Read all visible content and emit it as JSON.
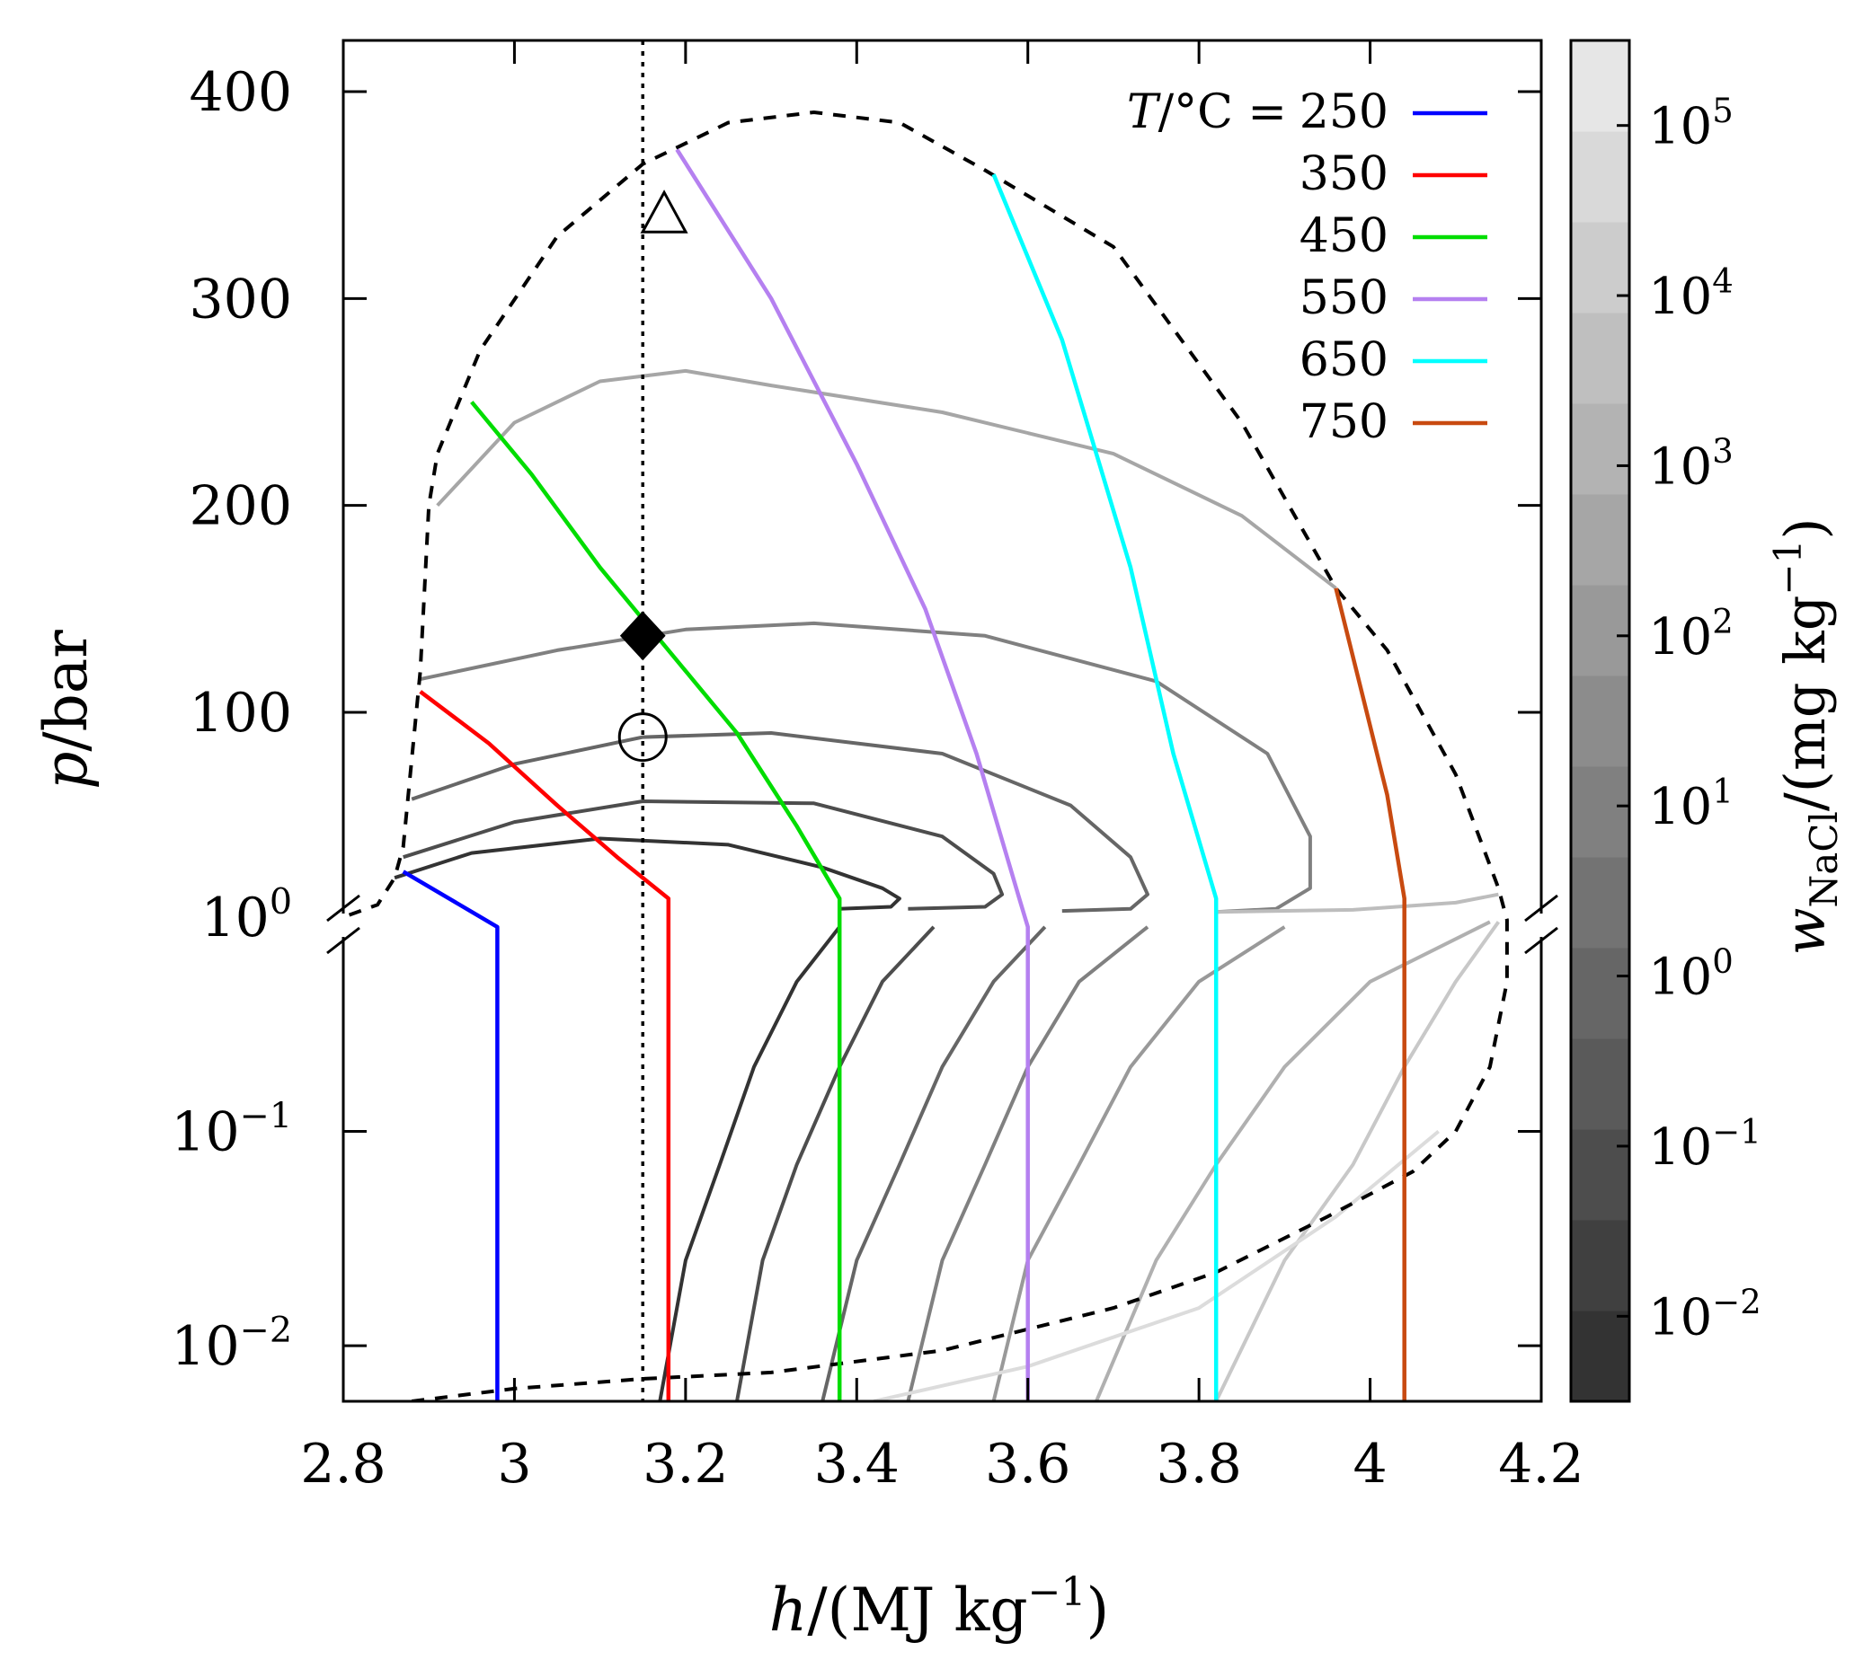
{
  "chart_data": {
    "type": "line",
    "xlabel": {
      "symbol": "h",
      "unit": "MJ kg",
      "exp": "−1"
    },
    "ylabel": {
      "symbol": "p",
      "unit": "bar"
    },
    "xlim": [
      2.8,
      4.2
    ],
    "x_ticks": [
      "2.8",
      "3",
      "3.2",
      "3.4",
      "3.6",
      "3.8",
      "4",
      "4.2"
    ],
    "upper_y": {
      "scale": "linear",
      "range": [
        0,
        400
      ],
      "ticks": [
        {
          "value": 100,
          "label": "100"
        },
        {
          "value": 200,
          "label": "200"
        },
        {
          "value": 300,
          "label": "300"
        },
        {
          "value": 400,
          "label": "400"
        }
      ]
    },
    "lower_y": {
      "scale": "log",
      "range": [
        0.0055,
        1.0
      ],
      "ticks": [
        {
          "value": 1,
          "base": "10",
          "exp": "0"
        },
        {
          "value": 0.1,
          "base": "10",
          "exp": "−1"
        },
        {
          "value": 0.01,
          "base": "10",
          "exp": "−2"
        }
      ]
    },
    "legend": {
      "placement": "top-right",
      "prefix_symbol": "T",
      "prefix_unit": "/°C =",
      "entries": [
        "250",
        "350",
        "450",
        "550",
        "650",
        "750"
      ]
    },
    "isotherms": [
      {
        "name": "250",
        "color": "#0000ff",
        "points": [
          [
            2.87,
            23
          ],
          [
            2.98,
            0.9
          ],
          [
            2.98,
            0.1
          ],
          [
            2.98,
            0.0055
          ]
        ]
      },
      {
        "name": "350",
        "color": "#ff0000",
        "points": [
          [
            2.89,
            110
          ],
          [
            2.97,
            85
          ],
          [
            3.05,
            55
          ],
          [
            3.12,
            30
          ],
          [
            3.18,
            10
          ],
          [
            3.18,
            0.9
          ],
          [
            3.18,
            0.1
          ],
          [
            3.18,
            0.0055
          ]
        ]
      },
      {
        "name": "450",
        "color": "#00dd00",
        "points": [
          [
            2.95,
            250
          ],
          [
            3.02,
            215
          ],
          [
            3.1,
            170
          ],
          [
            3.18,
            130
          ],
          [
            3.26,
            90
          ],
          [
            3.33,
            45
          ],
          [
            3.38,
            10
          ],
          [
            3.38,
            0.9
          ],
          [
            3.38,
            0.1
          ],
          [
            3.38,
            0.0055
          ]
        ]
      },
      {
        "name": "550",
        "color": "#b580f0",
        "points": [
          [
            3.19,
            372
          ],
          [
            3.3,
            300
          ],
          [
            3.4,
            220
          ],
          [
            3.48,
            150
          ],
          [
            3.54,
            80
          ],
          [
            3.59,
            10
          ],
          [
            3.6,
            0.9
          ],
          [
            3.6,
            0.1
          ],
          [
            3.6,
            0.0055
          ]
        ]
      },
      {
        "name": "650",
        "color": "#00ffff",
        "points": [
          [
            3.56,
            360
          ],
          [
            3.64,
            280
          ],
          [
            3.72,
            170
          ],
          [
            3.77,
            80
          ],
          [
            3.82,
            10
          ],
          [
            3.82,
            0.9
          ],
          [
            3.82,
            0.1
          ],
          [
            3.82,
            0.0055
          ]
        ]
      },
      {
        "name": "750",
        "color": "#c84a10",
        "points": [
          [
            3.96,
            160
          ],
          [
            3.99,
            110
          ],
          [
            4.02,
            60
          ],
          [
            4.04,
            10
          ],
          [
            4.04,
            0.9
          ],
          [
            4.04,
            0.1
          ],
          [
            4.04,
            0.0055
          ]
        ]
      }
    ],
    "saturation_boundary": {
      "style": "dashed",
      "points": [
        [
          2.88,
          0.0055
        ],
        [
          3.0,
          0.0063
        ],
        [
          3.15,
          0.007
        ],
        [
          3.3,
          0.0075
        ],
        [
          3.5,
          0.0095
        ],
        [
          3.7,
          0.015
        ],
        [
          3.82,
          0.022
        ],
        [
          3.95,
          0.04
        ],
        [
          4.05,
          0.065
        ],
        [
          4.1,
          0.1
        ],
        [
          4.14,
          0.2
        ],
        [
          4.16,
          0.5
        ],
        [
          4.16,
          0.97
        ],
        [
          4.15,
          15
        ],
        [
          4.1,
          70
        ],
        [
          4.02,
          130
        ],
        [
          3.96,
          160
        ],
        [
          3.85,
          240
        ],
        [
          3.7,
          325
        ],
        [
          3.55,
          362
        ],
        [
          3.45,
          385
        ],
        [
          3.35,
          390
        ],
        [
          3.25,
          385
        ],
        [
          3.15,
          365
        ],
        [
          3.05,
          330
        ],
        [
          2.96,
          275
        ],
        [
          2.91,
          225
        ],
        [
          2.9,
          200
        ],
        [
          2.89,
          120
        ],
        [
          2.87,
          35
        ],
        [
          2.86,
          20
        ],
        [
          2.84,
          7
        ],
        [
          2.8,
          1.0
        ]
      ]
    },
    "vertical_reference": {
      "x": 3.15,
      "style": "dotted"
    },
    "markers": [
      {
        "shape": "triangle",
        "x": 3.175,
        "y": 340,
        "fill": "none"
      },
      {
        "shape": "diamond",
        "x": 3.15,
        "y": 137,
        "fill": "#000000"
      },
      {
        "shape": "circle",
        "x": 3.15,
        "y": 88,
        "fill": "none"
      }
    ],
    "contours": [
      {
        "level": "10^-2",
        "color": "#333333",
        "points": [
          [
            2.86,
            20
          ],
          [
            2.95,
            32
          ],
          [
            3.1,
            39
          ],
          [
            3.25,
            36
          ],
          [
            3.36,
            25
          ],
          [
            3.43,
            15
          ],
          [
            3.45,
            10
          ],
          [
            3.44,
            6
          ],
          [
            3.38,
            5
          ]
        ]
      },
      {
        "level": "10^-1",
        "color": "#4d4d4d",
        "points": [
          [
            2.87,
            30
          ],
          [
            3.0,
            47
          ],
          [
            3.15,
            57
          ],
          [
            3.35,
            56
          ],
          [
            3.5,
            40
          ],
          [
            3.56,
            22
          ],
          [
            3.57,
            12
          ],
          [
            3.55,
            6
          ],
          [
            3.46,
            5
          ]
        ]
      },
      {
        "level": "10^0",
        "color": "#666666",
        "points": [
          [
            2.88,
            58
          ],
          [
            3.0,
            75
          ],
          [
            3.15,
            88
          ],
          [
            3.3,
            90
          ],
          [
            3.5,
            80
          ],
          [
            3.65,
            55
          ],
          [
            3.72,
            30
          ],
          [
            3.74,
            12
          ],
          [
            3.72,
            5
          ],
          [
            3.64,
            4
          ]
        ]
      },
      {
        "level": "10^1",
        "color": "#808080",
        "points": [
          [
            2.89,
            116
          ],
          [
            3.05,
            130
          ],
          [
            3.2,
            140
          ],
          [
            3.35,
            143
          ],
          [
            3.55,
            137
          ],
          [
            3.75,
            115
          ],
          [
            3.88,
            80
          ],
          [
            3.93,
            40
          ],
          [
            3.93,
            15
          ],
          [
            3.89,
            5
          ],
          [
            3.82,
            3.5
          ]
        ]
      },
      {
        "level": "10^3",
        "color": "#a6a6a6",
        "points": [
          [
            2.91,
            200
          ],
          [
            3.0,
            240
          ],
          [
            3.1,
            260
          ],
          [
            3.2,
            265
          ],
          [
            3.3,
            258
          ],
          [
            3.5,
            245
          ],
          [
            3.7,
            225
          ],
          [
            3.85,
            195
          ],
          [
            3.96,
            160
          ]
        ]
      },
      {
        "level": "10^4",
        "color": "#bdbdbd",
        "points": [
          [
            3.82,
            3.5
          ],
          [
            3.98,
            4.5
          ],
          [
            4.1,
            8
          ],
          [
            4.15,
            12
          ]
        ]
      },
      {
        "level": "low-10^-2",
        "color": "#333333",
        "points": [
          [
            3.38,
            0.9
          ],
          [
            3.33,
            0.5
          ],
          [
            3.28,
            0.2
          ],
          [
            3.24,
            0.07
          ],
          [
            3.2,
            0.025
          ],
          [
            3.17,
            0.0055
          ]
        ]
      },
      {
        "level": "low-10^-1",
        "color": "#4d4d4d",
        "points": [
          [
            3.49,
            0.9
          ],
          [
            3.43,
            0.5
          ],
          [
            3.38,
            0.2
          ],
          [
            3.33,
            0.07
          ],
          [
            3.29,
            0.025
          ],
          [
            3.26,
            0.0055
          ]
        ]
      },
      {
        "level": "low-10^0",
        "color": "#666666",
        "points": [
          [
            3.62,
            0.9
          ],
          [
            3.56,
            0.5
          ],
          [
            3.5,
            0.2
          ],
          [
            3.45,
            0.07
          ],
          [
            3.4,
            0.025
          ],
          [
            3.36,
            0.0055
          ]
        ]
      },
      {
        "level": "low-10^1",
        "color": "#808080",
        "points": [
          [
            3.74,
            0.9
          ],
          [
            3.66,
            0.5
          ],
          [
            3.6,
            0.2
          ],
          [
            3.55,
            0.07
          ],
          [
            3.5,
            0.025
          ],
          [
            3.46,
            0.0055
          ]
        ]
      },
      {
        "level": "low-10^2",
        "color": "#999999",
        "points": [
          [
            3.9,
            0.9
          ],
          [
            3.8,
            0.5
          ],
          [
            3.72,
            0.2
          ],
          [
            3.66,
            0.07
          ],
          [
            3.6,
            0.025
          ],
          [
            3.56,
            0.0055
          ]
        ]
      },
      {
        "level": "low-10^3",
        "color": "#b0b0b0",
        "points": [
          [
            4.14,
            0.95
          ],
          [
            4.0,
            0.5
          ],
          [
            3.9,
            0.2
          ],
          [
            3.82,
            0.07
          ],
          [
            3.75,
            0.025
          ],
          [
            3.68,
            0.0055
          ]
        ]
      },
      {
        "level": "low-10^4",
        "color": "#c8c8c8",
        "points": [
          [
            4.15,
            0.95
          ],
          [
            4.1,
            0.5
          ],
          [
            4.04,
            0.2
          ],
          [
            3.98,
            0.07
          ],
          [
            3.9,
            0.025
          ],
          [
            3.82,
            0.0055
          ]
        ]
      },
      {
        "level": "low-10^5",
        "color": "#dcdcdc",
        "points": [
          [
            4.08,
            0.1
          ],
          [
            3.96,
            0.04
          ],
          [
            3.8,
            0.015
          ],
          [
            3.6,
            0.008
          ],
          [
            3.42,
            0.0055
          ]
        ]
      }
    ],
    "colorbar": {
      "label_symbol": "w",
      "label_sub": "NaCl",
      "label_unit": "mg kg",
      "label_exp": "−1",
      "bands": [
        "#333333",
        "#404040",
        "#4d4d4d",
        "#5a5a5a",
        "#666666",
        "#737373",
        "#808080",
        "#8c8c8c",
        "#999999",
        "#a6a6a6",
        "#b3b3b3",
        "#bfbfbf",
        "#cccccc",
        "#d9d9d9",
        "#e6e6e6"
      ],
      "ticks": [
        {
          "base": "10",
          "exp": "−2",
          "value": -2
        },
        {
          "base": "10",
          "exp": "−1",
          "value": -1
        },
        {
          "base": "10",
          "exp": "0",
          "value": 0
        },
        {
          "base": "10",
          "exp": "1",
          "value": 1
        },
        {
          "base": "10",
          "exp": "2",
          "value": 2
        },
        {
          "base": "10",
          "exp": "3",
          "value": 3
        },
        {
          "base": "10",
          "exp": "4",
          "value": 4
        },
        {
          "base": "10",
          "exp": "5",
          "value": 5
        }
      ],
      "range": [
        -2.5,
        5.5
      ]
    }
  }
}
